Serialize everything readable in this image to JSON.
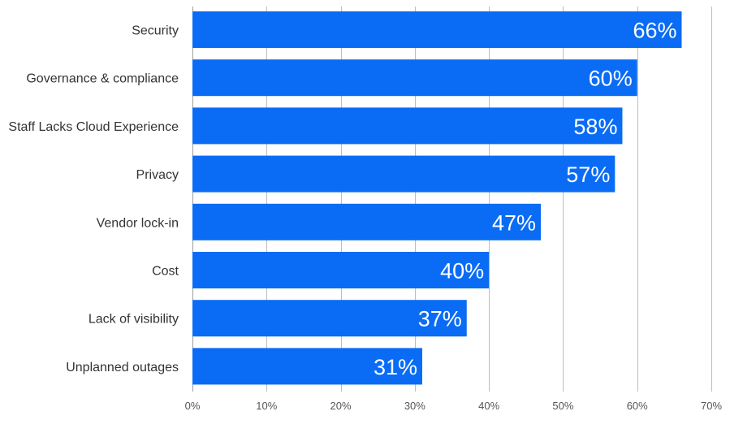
{
  "chart_data": {
    "type": "bar",
    "orientation": "horizontal",
    "categories": [
      "Security",
      "Governance & compliance",
      "Staff Lacks Cloud Experience",
      "Privacy",
      "Vendor lock-in",
      "Cost",
      "Lack of visibility",
      "Unplanned outages"
    ],
    "values": [
      66,
      60,
      58,
      57,
      47,
      40,
      37,
      31
    ],
    "data_labels": [
      "66%",
      "60%",
      "58%",
      "57%",
      "47%",
      "40%",
      "37%",
      "31%"
    ],
    "xlim": [
      0,
      70
    ],
    "x_ticks": [
      0,
      10,
      20,
      30,
      40,
      50,
      60,
      70
    ],
    "x_tick_labels": [
      "0%",
      "10%",
      "20%",
      "30%",
      "40%",
      "50%",
      "60%",
      "70%"
    ],
    "grid": true,
    "bar_color": "#0A6CF5",
    "label_color": "#ffffff"
  }
}
